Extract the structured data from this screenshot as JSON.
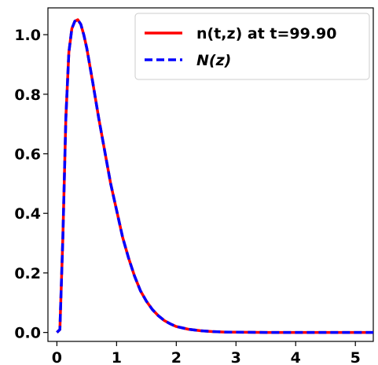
{
  "chart_data": {
    "type": "line",
    "title": "",
    "xlabel": "",
    "ylabel": "",
    "xlim": [
      -0.15,
      5.3
    ],
    "ylim": [
      -0.03,
      1.09
    ],
    "x_ticks": [
      0,
      1,
      2,
      3,
      4,
      5
    ],
    "x_tick_labels": [
      "0",
      "1",
      "2",
      "3",
      "4",
      "5"
    ],
    "y_ticks": [
      0.0,
      0.2,
      0.4,
      0.6,
      0.8,
      1.0
    ],
    "y_tick_labels": [
      "0.0",
      "0.2",
      "0.4",
      "0.6",
      "0.8",
      "1.0"
    ],
    "grid": false,
    "legend_position": "top-right",
    "legend": [
      {
        "label": "n(t,z) at t=99.90",
        "color": "#ff0000",
        "style": "solid"
      },
      {
        "label": "N(z)",
        "color": "#0000ff",
        "style": "dashed",
        "italic": true
      }
    ],
    "x": [
      0,
      0.05,
      0.1,
      0.15,
      0.2,
      0.25,
      0.3,
      0.35,
      0.4,
      0.45,
      0.5,
      0.6,
      0.7,
      0.8,
      0.9,
      1.0,
      1.1,
      1.2,
      1.3,
      1.4,
      1.5,
      1.6,
      1.7,
      1.8,
      1.9,
      2.0,
      2.2,
      2.4,
      2.6,
      2.8,
      3.0,
      3.5,
      4.0,
      4.5,
      5.0,
      5.3
    ],
    "series": [
      {
        "name": "n(t,z) at t=99.90",
        "color": "#ff0000",
        "values": [
          0.0,
          0.01,
          0.32,
          0.72,
          0.94,
          1.02,
          1.045,
          1.05,
          1.035,
          1.0,
          0.955,
          0.84,
          0.72,
          0.61,
          0.5,
          0.41,
          0.32,
          0.25,
          0.19,
          0.14,
          0.105,
          0.077,
          0.056,
          0.04,
          0.029,
          0.02,
          0.011,
          0.006,
          0.003,
          0.0015,
          0.0008,
          0.0002,
          0.0,
          0.0,
          0.0,
          0.0
        ]
      },
      {
        "name": "N(z)",
        "color": "#0000ff",
        "values": [
          0.0,
          0.01,
          0.32,
          0.72,
          0.94,
          1.02,
          1.045,
          1.05,
          1.035,
          1.0,
          0.955,
          0.84,
          0.72,
          0.61,
          0.5,
          0.41,
          0.32,
          0.25,
          0.19,
          0.14,
          0.105,
          0.077,
          0.056,
          0.04,
          0.029,
          0.02,
          0.011,
          0.006,
          0.003,
          0.0015,
          0.0008,
          0.0002,
          0.0,
          0.0,
          0.0,
          0.0
        ]
      }
    ]
  }
}
